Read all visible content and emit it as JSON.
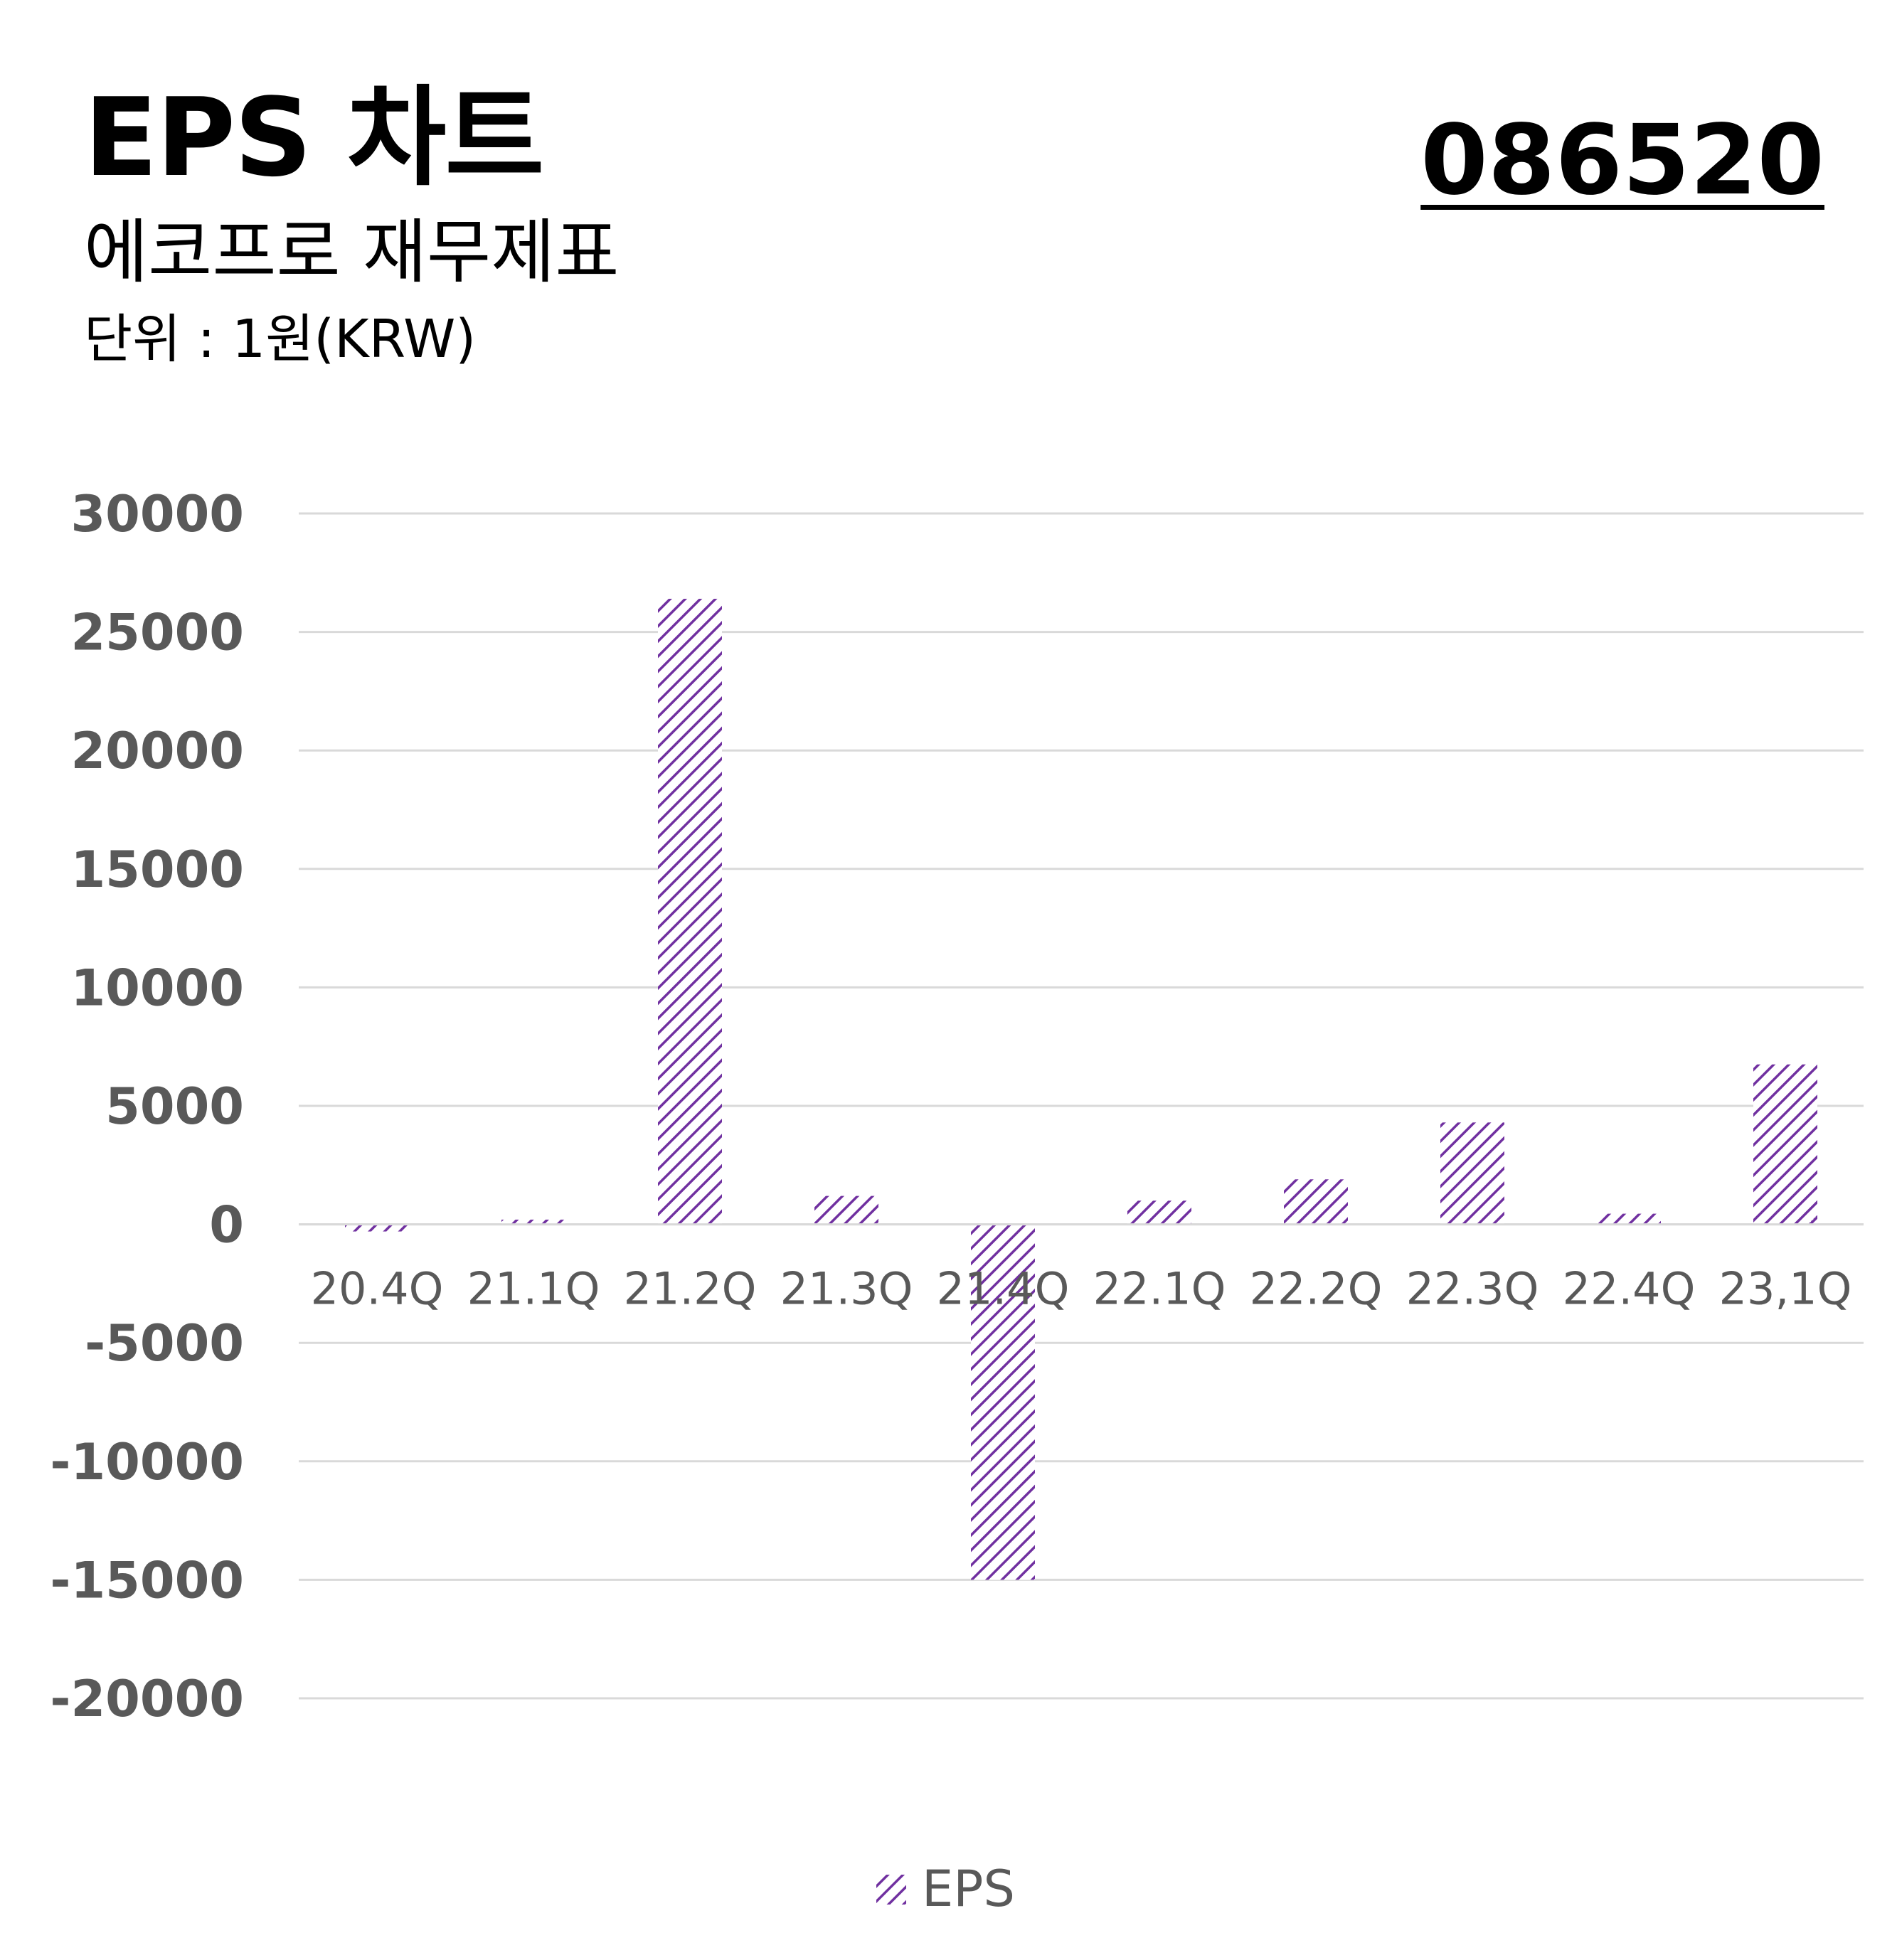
{
  "header": {
    "title": "EPS 차트",
    "subtitle": "에코프로 재무제표",
    "unit": "단위 : 1원(KRW)",
    "stock_code": "086520"
  },
  "colors": {
    "bar": "#7030a0",
    "grid": "#d9d9d9",
    "axis_text": "#595959"
  },
  "chart_data": {
    "type": "bar",
    "categories": [
      "20.4Q",
      "21.1Q",
      "21.2Q",
      "21.3Q",
      "21.4Q",
      "22.1Q",
      "22.2Q",
      "22.3Q",
      "22.4Q",
      "23,1Q"
    ],
    "series": [
      {
        "name": "EPS",
        "values": [
          -300,
          200,
          26400,
          1200,
          -15000,
          1000,
          1900,
          4300,
          450,
          6750
        ]
      }
    ],
    "ylim": [
      -20000,
      30000
    ],
    "yticks": [
      "30000",
      "25000",
      "20000",
      "15000",
      "10000",
      "5000",
      "0",
      "-5000",
      "-10000",
      "-15000",
      "-20000"
    ],
    "ytick_values": [
      30000,
      25000,
      20000,
      15000,
      10000,
      5000,
      0,
      -5000,
      -10000,
      -15000,
      -20000
    ],
    "grid": true,
    "legend_position": "bottom",
    "bar_pattern": "diagonal-hatch"
  }
}
